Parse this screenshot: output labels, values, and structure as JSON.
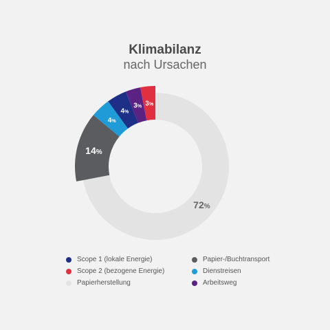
{
  "header": {
    "title": "Klimabilanz",
    "subtitle": "nach Ursachen"
  },
  "chart_data": {
    "type": "pie",
    "donut": true,
    "title": "Klimabilanz",
    "subtitle": "nach Ursachen",
    "unit": "%",
    "legend_position": "bottom",
    "slices": [
      {
        "name": "Papierherstellung",
        "value": 72,
        "color": "#e3e3e3",
        "label_color": "#666666",
        "exploded": false
      },
      {
        "name": "Papier-/Buchtransport",
        "value": 14,
        "color": "#5a5c60",
        "label_color": "#ffffff",
        "exploded": true
      },
      {
        "name": "Dienstreisen",
        "value": 4,
        "color": "#1f9cd8",
        "label_color": "#ffffff",
        "exploded": true
      },
      {
        "name": "Scope 1 (lokale Energie)",
        "value": 4,
        "color": "#1d2f86",
        "label_color": "#ffffff",
        "exploded": true
      },
      {
        "name": "Arbeitsweg",
        "value": 3,
        "color": "#5a2283",
        "label_color": "#ffffff",
        "exploded": true
      },
      {
        "name": "Scope 2 (bezogene Energie)",
        "value": 3,
        "color": "#e0303f",
        "label_color": "#ffffff",
        "exploded": true
      }
    ]
  },
  "legend": [
    {
      "label": "Scope 1 (lokale Energie)",
      "color": "#1d2f86"
    },
    {
      "label": "Papier-/Buchtransport",
      "color": "#5a5c60"
    },
    {
      "label": "Scope 2 (bezogene Energie)",
      "color": "#e0303f"
    },
    {
      "label": "Dienstreisen",
      "color": "#1f9cd8"
    },
    {
      "label": "Papierherstellung",
      "color": "#e3e3e3"
    },
    {
      "label": "Arbeitsweg",
      "color": "#5a2283"
    }
  ]
}
